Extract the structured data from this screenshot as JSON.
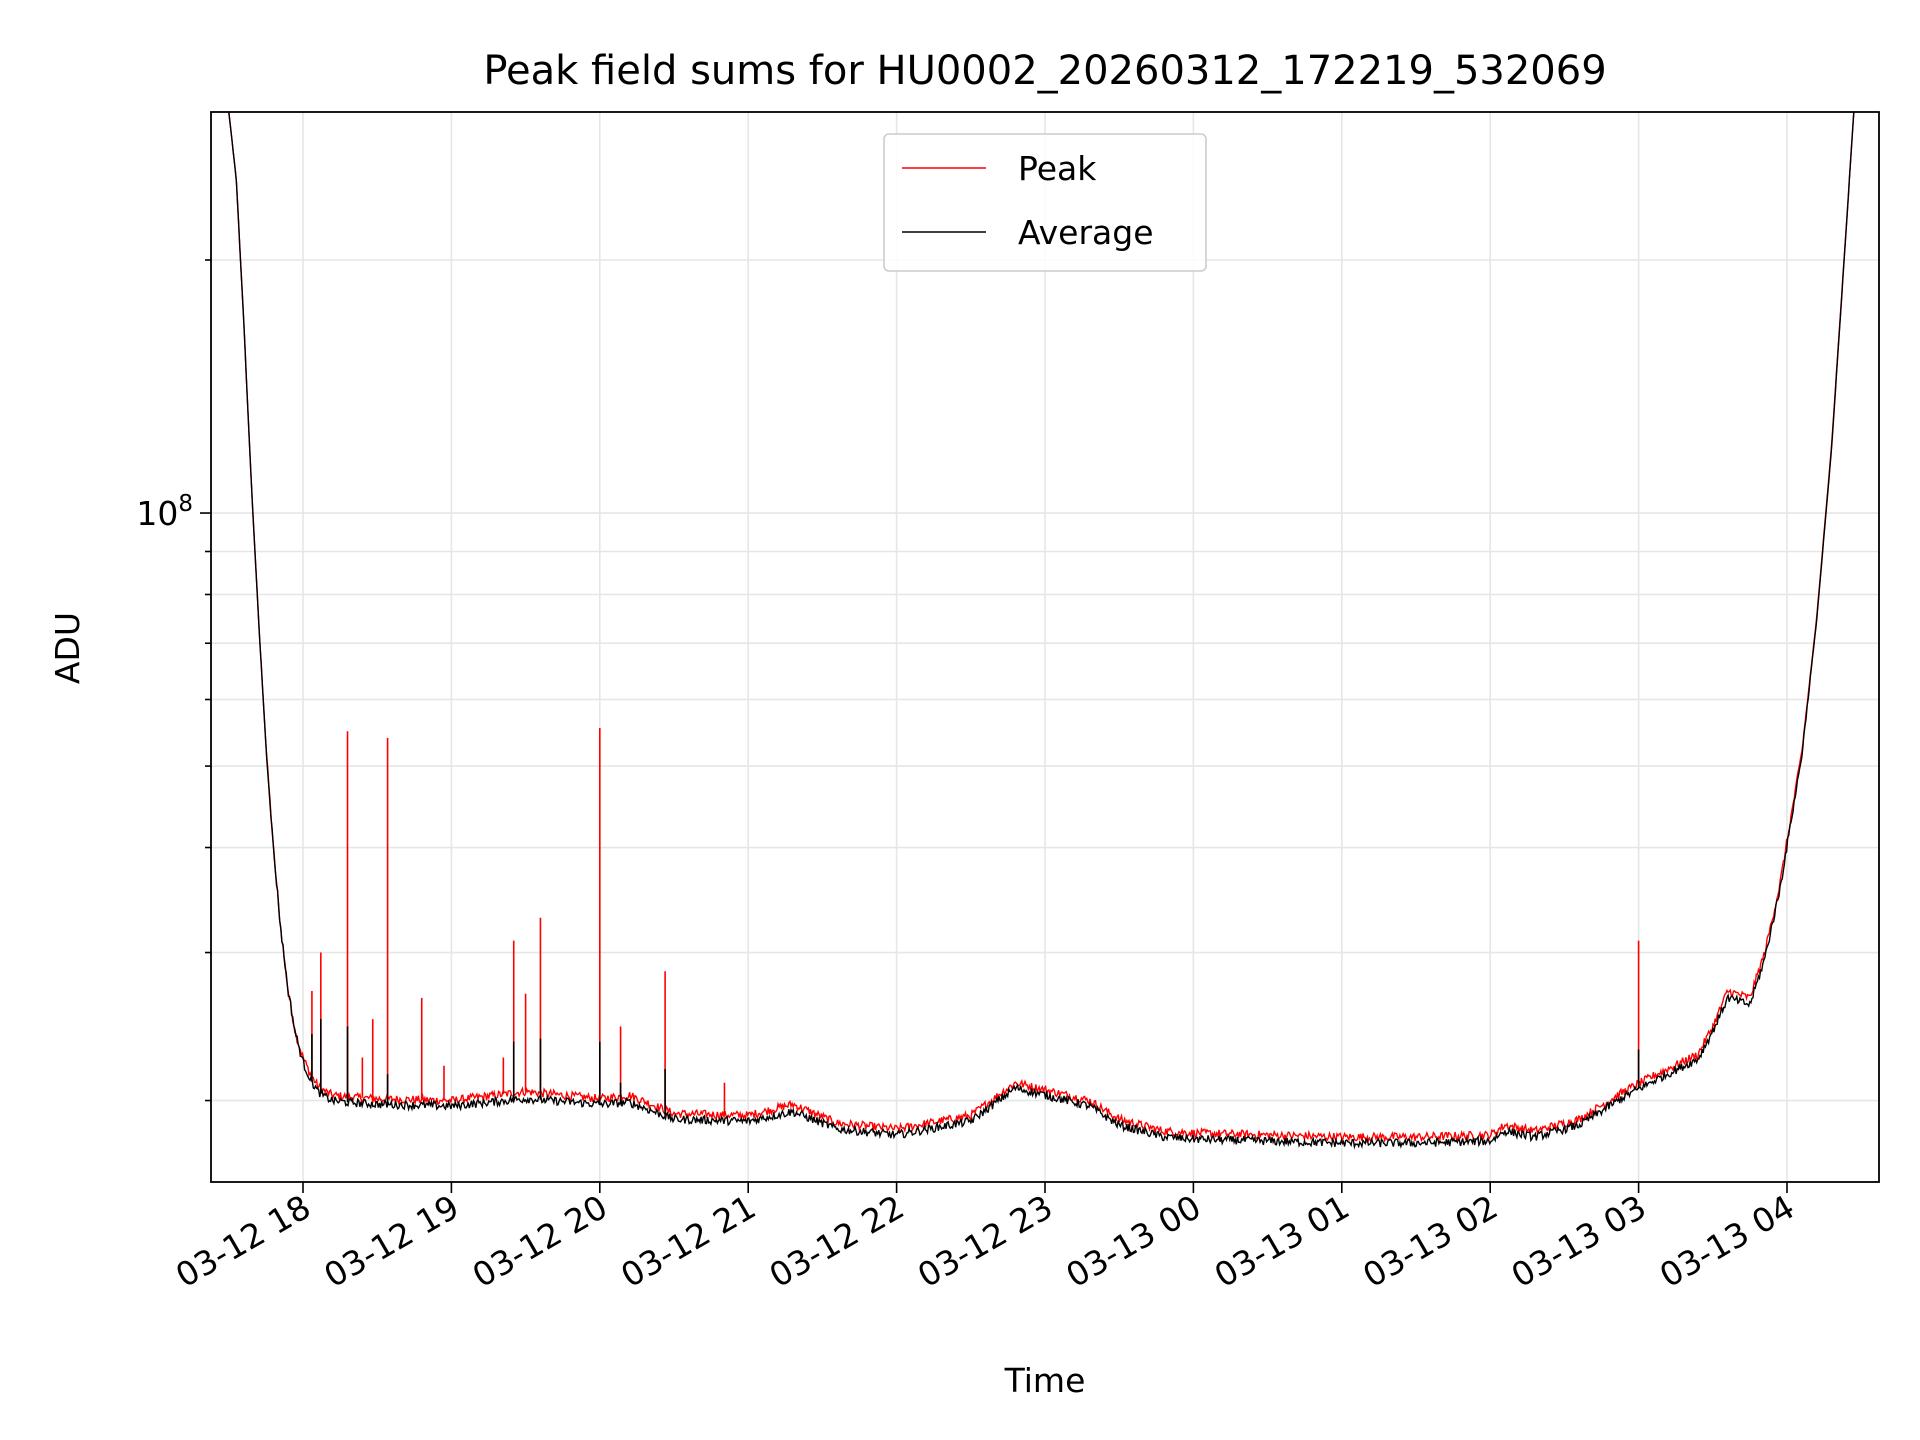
{
  "chart_data": {
    "type": "line",
    "title": "Peak field sums for HU0002_20260312_172219_532069",
    "xlabel": "Time",
    "ylabel": "ADU",
    "yscale": "log",
    "ylim": [
      16000000,
      300000000
    ],
    "xlim_hours": [
      -0.62,
      10.62
    ],
    "x_tick_labels": [
      "03-12 18",
      "03-12 19",
      "03-12 20",
      "03-12 21",
      "03-12 22",
      "03-12 23",
      "03-13 00",
      "03-13 01",
      "03-13 02",
      "03-13 03",
      "03-13 04"
    ],
    "x_tick_hours": [
      0,
      1,
      2,
      3,
      4,
      5,
      6,
      7,
      8,
      9,
      10
    ],
    "y_major_ticks": [
      {
        "value": 100000000,
        "base": "10",
        "exp": "8"
      }
    ],
    "y_minor_ticks": [
      20000000,
      30000000,
      40000000,
      50000000,
      60000000,
      70000000,
      80000000,
      90000000,
      200000000
    ],
    "grid": true,
    "legend": {
      "position": "upper center",
      "entries": [
        "Peak",
        "Average"
      ]
    },
    "series": [
      {
        "name": "Peak",
        "color": "#ff0000",
        "x_hours": [
          -0.5,
          -0.45,
          -0.4,
          -0.35,
          -0.3,
          -0.25,
          -0.2,
          -0.15,
          -0.1,
          -0.05,
          0.0,
          0.05,
          0.1,
          0.15,
          0.2,
          0.3,
          0.5,
          1.0,
          1.5,
          2.0,
          2.2,
          2.5,
          3.0,
          3.3,
          3.6,
          4.0,
          4.5,
          4.8,
          5.0,
          5.3,
          5.5,
          5.8,
          6.0,
          6.5,
          7.0,
          7.5,
          8.0,
          8.1,
          8.3,
          8.6,
          8.9,
          9.1,
          9.4,
          9.5,
          9.6,
          9.75,
          9.85,
          9.95,
          10.1,
          10.2,
          10.3,
          10.4,
          10.45
        ],
        "values": [
          300000000,
          250000000,
          170000000,
          110000000,
          75000000,
          53000000,
          40000000,
          32000000,
          27000000,
          24000000,
          22500000,
          21500000,
          20800000,
          20500000,
          20300000,
          20200000,
          20100000,
          20000000,
          20500000,
          20100000,
          20300000,
          19300000,
          19200000,
          19800000,
          18800000,
          18500000,
          19200000,
          21000000,
          20600000,
          20000000,
          19000000,
          18400000,
          18300000,
          18200000,
          18100000,
          18100000,
          18200000,
          18700000,
          18400000,
          19000000,
          20500000,
          21400000,
          22700000,
          24500000,
          27000000,
          26500000,
          30000000,
          36000000,
          52000000,
          75000000,
          120000000,
          220000000,
          300000000
        ],
        "spikes": [
          {
            "hour": 0.06,
            "value": 27000000
          },
          {
            "hour": 0.12,
            "value": 30000000
          },
          {
            "hour": 0.3,
            "value": 55000000
          },
          {
            "hour": 0.4,
            "value": 22500000
          },
          {
            "hour": 0.47,
            "value": 25000000
          },
          {
            "hour": 0.57,
            "value": 54000000
          },
          {
            "hour": 0.8,
            "value": 26500000
          },
          {
            "hour": 0.95,
            "value": 22000000
          },
          {
            "hour": 1.35,
            "value": 22500000
          },
          {
            "hour": 1.42,
            "value": 31000000
          },
          {
            "hour": 1.5,
            "value": 26800000
          },
          {
            "hour": 1.6,
            "value": 33000000
          },
          {
            "hour": 2.0,
            "value": 55500000
          },
          {
            "hour": 2.14,
            "value": 24500000
          },
          {
            "hour": 2.44,
            "value": 28500000
          },
          {
            "hour": 2.84,
            "value": 21000000
          },
          {
            "hour": 9.0,
            "value": 31000000
          }
        ]
      },
      {
        "name": "Average",
        "color": "#000000",
        "x_hours": [
          -0.5,
          -0.45,
          -0.4,
          -0.35,
          -0.3,
          -0.25,
          -0.2,
          -0.15,
          -0.1,
          -0.05,
          0.0,
          0.05,
          0.1,
          0.15,
          0.2,
          0.3,
          0.5,
          1.0,
          1.5,
          2.0,
          2.2,
          2.5,
          3.0,
          3.3,
          3.6,
          4.0,
          4.5,
          4.8,
          5.0,
          5.3,
          5.5,
          5.8,
          6.0,
          6.5,
          7.0,
          7.5,
          8.0,
          8.1,
          8.3,
          8.6,
          8.9,
          9.1,
          9.4,
          9.5,
          9.6,
          9.75,
          9.85,
          9.95,
          10.1,
          10.2,
          10.3,
          10.4,
          10.45
        ],
        "values": [
          300000000,
          250000000,
          170000000,
          110000000,
          75000000,
          53000000,
          40000000,
          32000000,
          27000000,
          24000000,
          22200000,
          21200000,
          20500000,
          20200000,
          20000000,
          19900000,
          19800000,
          19700000,
          20100000,
          19800000,
          19900000,
          19000000,
          18900000,
          19400000,
          18500000,
          18200000,
          18900000,
          20700000,
          20300000,
          19700000,
          18700000,
          18100000,
          18000000,
          17900000,
          17800000,
          17800000,
          17900000,
          18400000,
          18100000,
          18700000,
          20200000,
          21100000,
          22400000,
          24200000,
          26500000,
          26000000,
          29500000,
          35500000,
          51500000,
          74500000,
          119000000,
          219000000,
          300000000
        ],
        "spikes": [
          {
            "hour": 0.06,
            "value": 24000000
          },
          {
            "hour": 0.12,
            "value": 25000000
          },
          {
            "hour": 0.3,
            "value": 24500000
          },
          {
            "hour": 0.57,
            "value": 21500000
          },
          {
            "hour": 1.42,
            "value": 23500000
          },
          {
            "hour": 1.6,
            "value": 23700000
          },
          {
            "hour": 2.0,
            "value": 23500000
          },
          {
            "hour": 2.14,
            "value": 21000000
          },
          {
            "hour": 2.44,
            "value": 21800000
          },
          {
            "hour": 9.0,
            "value": 23000000
          }
        ]
      }
    ]
  }
}
